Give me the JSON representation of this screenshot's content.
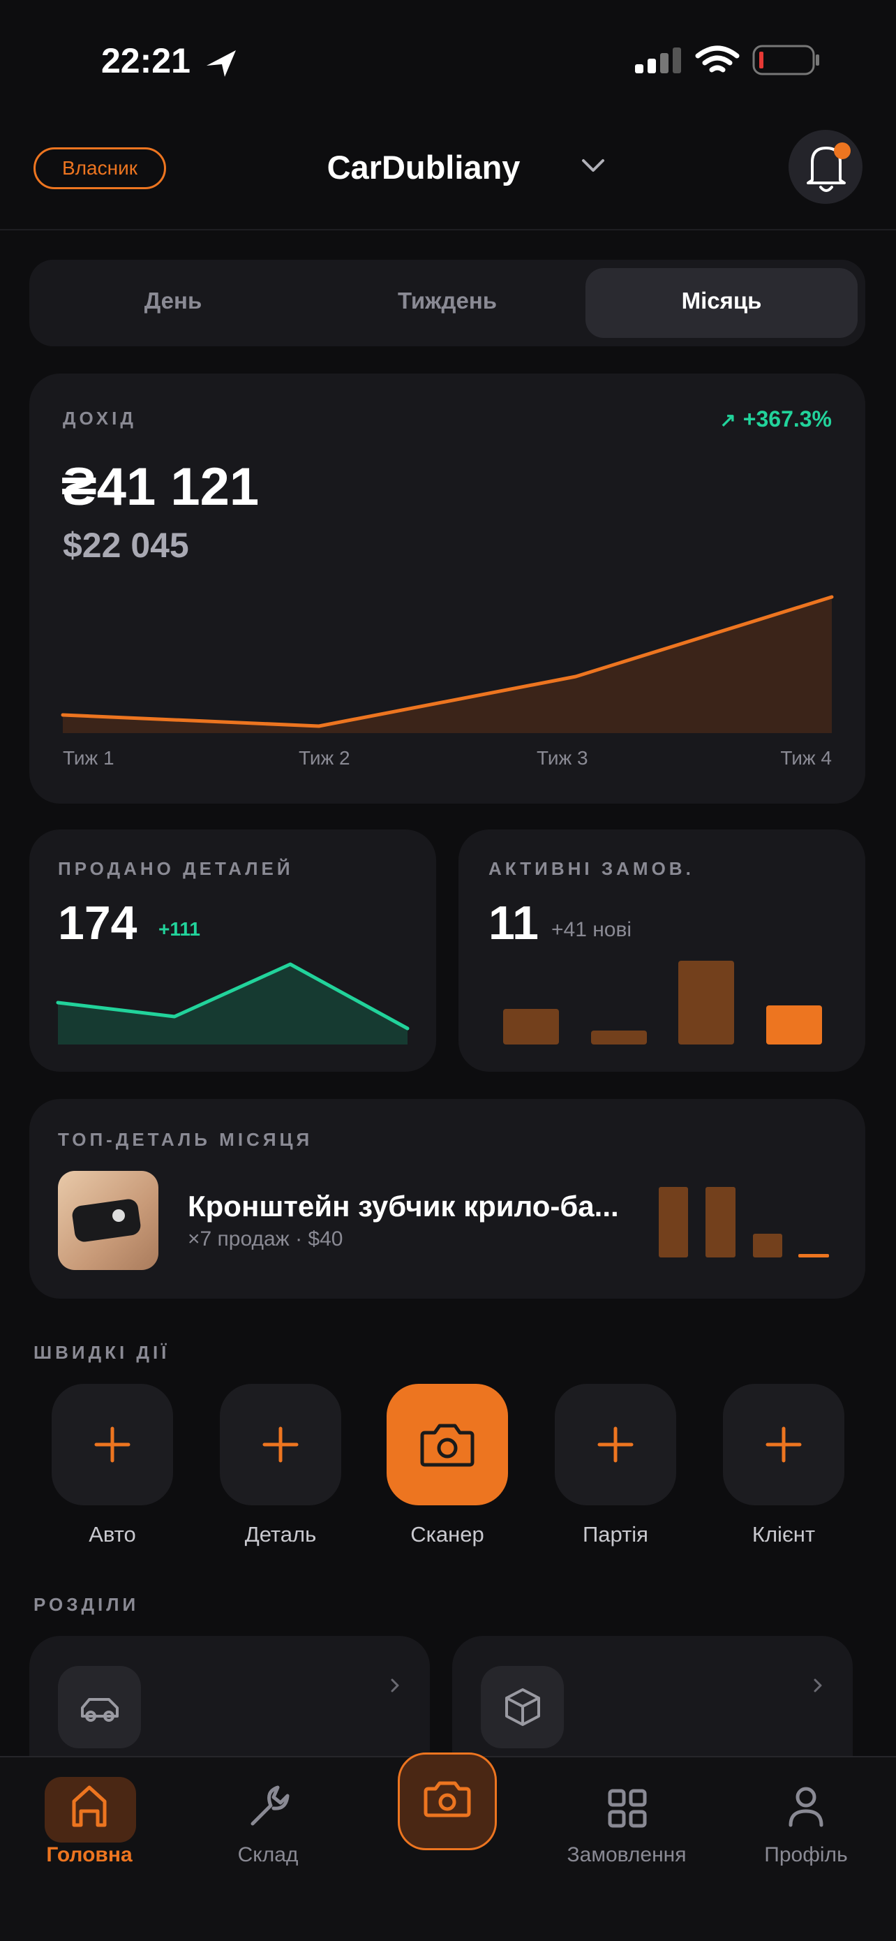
{
  "status_bar": {
    "time": "22:21"
  },
  "header": {
    "role": "Власник",
    "title": "CarDubliany"
  },
  "period_tabs": [
    "День",
    "Тиждень",
    "Місяць"
  ],
  "revenue": {
    "label": "ДОХІД",
    "change": "+367.3%",
    "amount": "₴41 121",
    "amount_usd": "$22 045",
    "week_labels": [
      "Тиж 1",
      "Тиж 2",
      "Тиж 3",
      "Тиж 4"
    ]
  },
  "parts_sold": {
    "label": "ПРОДАНО ДЕТАЛЕЙ",
    "value": "174",
    "delta": "+111"
  },
  "active_orders": {
    "label": "АКТИВНІ ЗАМОВ.",
    "value": "11",
    "new": "+41 нові"
  },
  "top_part": {
    "label": "ТОП-ДЕТАЛЬ МІСЯЦЯ",
    "name": "Кронштейн зубчик крило-ба...",
    "meta": "×7 продаж · $40"
  },
  "quick_actions": {
    "title": "ШВИДКІ ДІЇ",
    "items": [
      "Авто",
      "Деталь",
      "Сканер",
      "Партія",
      "Клієнт"
    ]
  },
  "sections": {
    "title": "РОЗДІЛИ"
  },
  "nav": [
    "Головна",
    "Склад",
    "Замовлення",
    "Профіль"
  ]
}
